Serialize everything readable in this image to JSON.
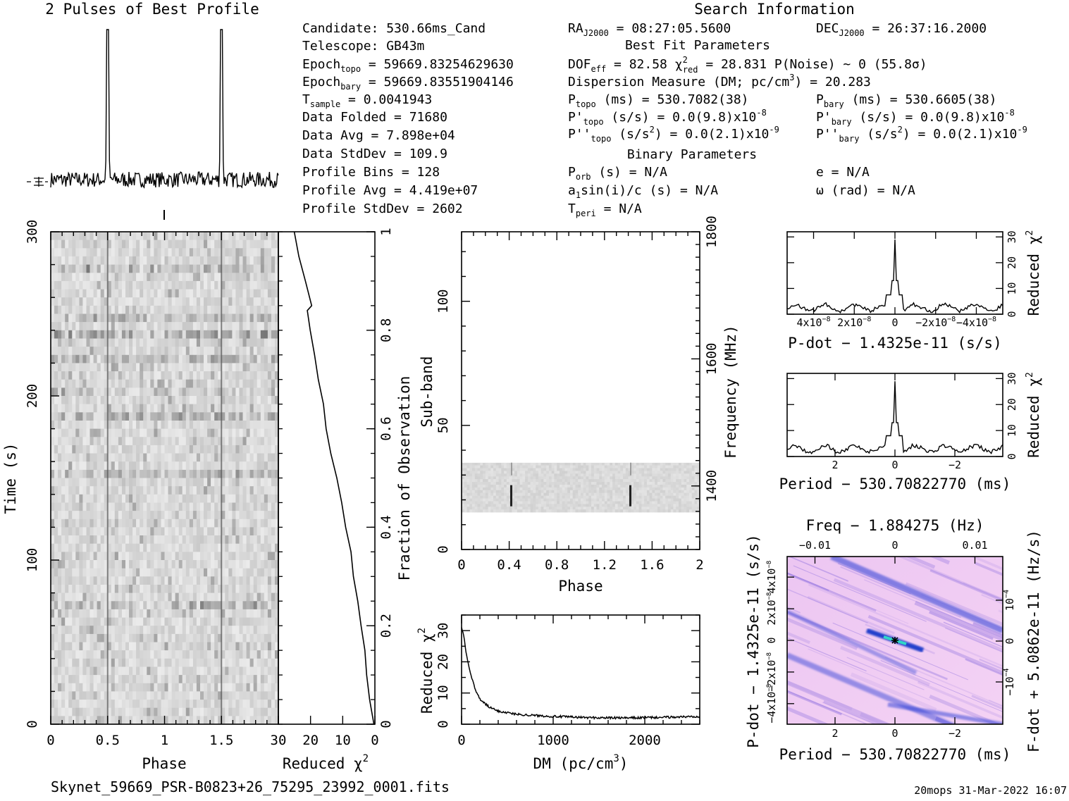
{
  "titles": {
    "profile": "2 Pulses of Best Profile",
    "search_info": "Search Information"
  },
  "info_left": [
    [
      "Candidate:  530.66ms_Cand",
      ""
    ],
    [
      "Telescope:  GB43m",
      ""
    ],
    [
      "Epoch",
      "topo",
      " = 59669.83254629630"
    ],
    [
      "Epoch",
      "bary",
      " = 59669.83551904146"
    ],
    [
      "T",
      "sample",
      "       =  0.0041943"
    ],
    [
      "Data Folded    =  71680"
    ],
    [
      "Data Avg       =  7.898e+04"
    ],
    [
      "Data StdDev    =  109.9"
    ],
    [
      "Profile Bins   =  128"
    ],
    [
      "Profile Avg    =  4.419e+07"
    ],
    [
      "Profile StdDev =  2602"
    ]
  ],
  "info_mid": {
    "ra": "RA",
    "ra_sub": "J2000",
    "ra_val": " = 08:27:05.5600",
    "dec": "DEC",
    "dec_sub": "J2000",
    "dec_val": " = 26:37:16.2000",
    "best_fit": "Best Fit Parameters",
    "dof": "DOF",
    "dof_sub": "eff",
    "dof_val": " = 82.58  χ",
    "chi_sup": "2",
    "chi_sub": "red",
    "chi_val": " = 28.831  P(Noise) ~ 0   (55.8σ)",
    "dm": "Dispersion Measure (DM; pc/cm",
    "dm_sup": "3",
    "dm_val": ") = 20.283",
    "ptopo": "P",
    "ptopo_sub": "topo",
    "ptopo_val": " (ms) =  530.7082(38)",
    "pbary": "P",
    "pbary_sub": "bary",
    "pbary_val": " (ms) =  530.6605(38)",
    "pdtopo": "P'",
    "pdtopo_sub": "topo",
    "pdtopo_val": " (s/s) = 0.0(9.8)x10",
    "pdtopo_exp": "-8",
    "pdbary": "P'",
    "pdbary_sub": "bary",
    "pdbary_val": " (s/s) = 0.0(9.8)x10",
    "pdbary_exp": "-8",
    "pddtopo": "P''",
    "pddtopo_sub": "topo",
    "pddtopo_val": " (s/s",
    "pddtopo_sup": "2",
    "pddtopo_val2": ") = 0.0(2.1)x10",
    "pddtopo_exp": "-9",
    "pddbary": "P''",
    "pddbary_sub": "bary",
    "pddbary_val": " (s/s",
    "pddbary_sup": "2",
    "pddbary_val2": ") = 0.0(2.1)x10",
    "pddbary_exp": "-9",
    "binary": "Binary Parameters",
    "porb": "P",
    "porb_sub": "orb",
    "porb_val": " (s) = N/A",
    "e": "e = N/A",
    "a1": "a",
    "a1_sub": "1",
    "a1_val": "sin(i)/c (s) = N/A",
    "omega": "ω (rad) = N/A",
    "tperi": "T",
    "tperi_sub": "peri",
    "tperi_val": " = N/A"
  },
  "footer": {
    "filename": "Skynet_59669_PSR-B0823+26_75295_23992_0001.fits",
    "stamp": "20mops 31-Mar-2022 16:07"
  },
  "chart_data": [
    {
      "id": "profile",
      "type": "line",
      "title": "2 Pulses of Best Profile",
      "x_range": [
        0,
        2
      ],
      "pulse_phases": [
        0.5,
        1.5
      ],
      "pulse_peak_relative": 1.0,
      "baseline_relative": 0.04
    },
    {
      "id": "time-phase",
      "type": "heatmap",
      "xlabel": "Phase",
      "ylabel": "Time (s)",
      "xlim": [
        0,
        2
      ],
      "ylim": [
        0,
        300
      ],
      "x_ticks": [
        "0",
        "0.5",
        "1",
        "1.5"
      ],
      "y_ticks": [
        "0",
        "100",
        "200",
        "300"
      ],
      "x_tick_values": [
        0,
        0.5,
        1,
        1.5
      ],
      "y_tick_values": [
        0,
        100,
        200,
        300
      ]
    },
    {
      "id": "chi-vs-time",
      "type": "line",
      "xlabel": "Reduced χ",
      "xlabel_sup": "2",
      "ylabel": "Fraction of Observation",
      "xlim": [
        30,
        0
      ],
      "ylim": [
        0,
        1
      ],
      "x_ticks": [
        "30",
        "20",
        "10",
        "0"
      ],
      "x_tick_values": [
        30,
        20,
        10,
        0
      ],
      "y_ticks": [
        "0",
        "0.2",
        "0.4",
        "0.6",
        "0.8",
        "1"
      ],
      "y_tick_values": [
        0,
        0.2,
        0.4,
        0.6,
        0.8,
        1
      ],
      "fraction": [
        0,
        0.05,
        0.1,
        0.15,
        0.2,
        0.25,
        0.3,
        0.35,
        0.4,
        0.45,
        0.5,
        0.55,
        0.6,
        0.65,
        0.7,
        0.75,
        0.8,
        0.84,
        0.85,
        0.9,
        0.95,
        1.0
      ],
      "chi": [
        0.5,
        1.5,
        2.5,
        3.3,
        4.5,
        5.5,
        6.5,
        7.6,
        8.9,
        10.5,
        12.0,
        13.5,
        15.0,
        16.2,
        17.5,
        18.8,
        20.0,
        21.0,
        19.5,
        21.5,
        23.5,
        25.0
      ]
    },
    {
      "id": "subband-phase",
      "type": "heatmap",
      "xlabel": "Phase",
      "ylabel": "Sub-band",
      "ylabel_right": "Frequency (MHz)",
      "xlim": [
        0,
        2
      ],
      "ylim": [
        0,
        128
      ],
      "x_ticks": [
        "0",
        "0.4",
        "0.8",
        "1.2",
        "1.6",
        "2"
      ],
      "x_tick_values": [
        0,
        0.4,
        0.8,
        1.2,
        1.6,
        2
      ],
      "y_ticks": [
        "0",
        "50",
        "100"
      ],
      "y_tick_values": [
        0,
        50,
        100
      ],
      "y2_ticks": [
        "1400",
        "1600",
        "1800"
      ],
      "y2_tick_values": [
        1400,
        1600,
        1800
      ],
      "y2lim": [
        1300,
        1800
      ],
      "data_band": [
        15,
        35
      ],
      "pulse_phases": [
        0.5,
        1.5
      ]
    },
    {
      "id": "chi-vs-dm",
      "type": "line",
      "xlabel": "DM (pc/cm",
      "xlabel_sup": "3",
      "xlabel_end": ")",
      "ylabel": "Reduced χ",
      "ylabel_sup": "2",
      "xlim": [
        0,
        2600
      ],
      "ylim": [
        0,
        35
      ],
      "x_ticks": [
        "0",
        "1000",
        "2000"
      ],
      "x_tick_values": [
        0,
        1000,
        2000
      ],
      "y_ticks": [
        "0",
        "10",
        "20",
        "30"
      ],
      "y_tick_values": [
        0,
        10,
        20,
        30
      ],
      "dm": [
        0,
        20,
        50,
        100,
        150,
        200,
        300,
        400,
        600,
        800,
        1000,
        1400,
        1800,
        2200,
        2600
      ],
      "chi": [
        31,
        29,
        23,
        16,
        11,
        8,
        5.5,
        4.2,
        3.2,
        2.8,
        2.5,
        2.1,
        2.0,
        2.2,
        2.5
      ]
    },
    {
      "id": "chi-vs-pdot",
      "type": "line",
      "xlabel": "P-dot − 1.4325e-11 (s/s)",
      "ylabel": "Reduced χ",
      "ylabel_sup": "2",
      "xlim": [
        5.3e-08,
        -5.3e-08
      ],
      "ylim": [
        0,
        32
      ],
      "x_ticks": [
        "4x10",
        "2x10",
        "0",
        "−2x10",
        "−4x10"
      ],
      "x_tick_sups": [
        "−8",
        "−8",
        "",
        "−8",
        "−8"
      ],
      "x_tick_values": [
        4e-08,
        2e-08,
        0,
        -2e-08,
        -4e-08
      ],
      "y_ticks": [
        "0",
        "10",
        "20",
        "30"
      ],
      "y_tick_values": [
        0,
        10,
        20,
        30
      ],
      "peak": 29,
      "baseline": 2.5
    },
    {
      "id": "chi-vs-period",
      "type": "line",
      "xlabel": "Period − 530.70822770 (ms)",
      "ylabel": "Reduced χ",
      "ylabel_sup": "2",
      "xlim": [
        3.6,
        -3.6
      ],
      "ylim": [
        0,
        32
      ],
      "x_ticks": [
        "2",
        "0",
        "−2"
      ],
      "x_tick_values": [
        2,
        0,
        -2
      ],
      "y_ticks": [
        "0",
        "10",
        "20",
        "30"
      ],
      "y_tick_values": [
        0,
        10,
        20,
        30
      ],
      "peak": 29,
      "baseline": 3
    },
    {
      "id": "p-pdot-plane",
      "type": "heatmap",
      "xlabel": "Period − 530.70822770 (ms)",
      "xlabel_top": "Freq − 1.884275 (Hz)",
      "ylabel": "P-dot − 1.4325e-11 (s/s)",
      "ylabel_right": "F-dot + 5.0862e-11 (Hz/s)",
      "xlim": [
        3.6,
        -3.6
      ],
      "x_ticks": [
        "2",
        "0",
        "−2"
      ],
      "x_tick_values": [
        2,
        0,
        -2
      ],
      "x_top_ticks": [
        "−0.01",
        "0",
        "0.01"
      ],
      "x_top_tick_values": [
        -0.01,
        0,
        0.01
      ],
      "ylim": [
        5.3e-08,
        -5.3e-08
      ],
      "y_ticks": [
        "4x10",
        "2x10",
        "0",
        "−2x10",
        "−4x10"
      ],
      "y_tick_sups": [
        "−8",
        "−8",
        "",
        "−8",
        "−8"
      ],
      "y_tick_values": [
        4e-08,
        2e-08,
        0,
        -2e-08,
        -4e-08
      ],
      "y_right_ticks": [
        "−10",
        "0",
        "10"
      ],
      "y_right_tick_sups": [
        "−4",
        "",
        "−4"
      ],
      "colors": {
        "low": "#f7d0f5",
        "high": "#1f3fd6",
        "peak": "#2fd6c8"
      }
    }
  ]
}
